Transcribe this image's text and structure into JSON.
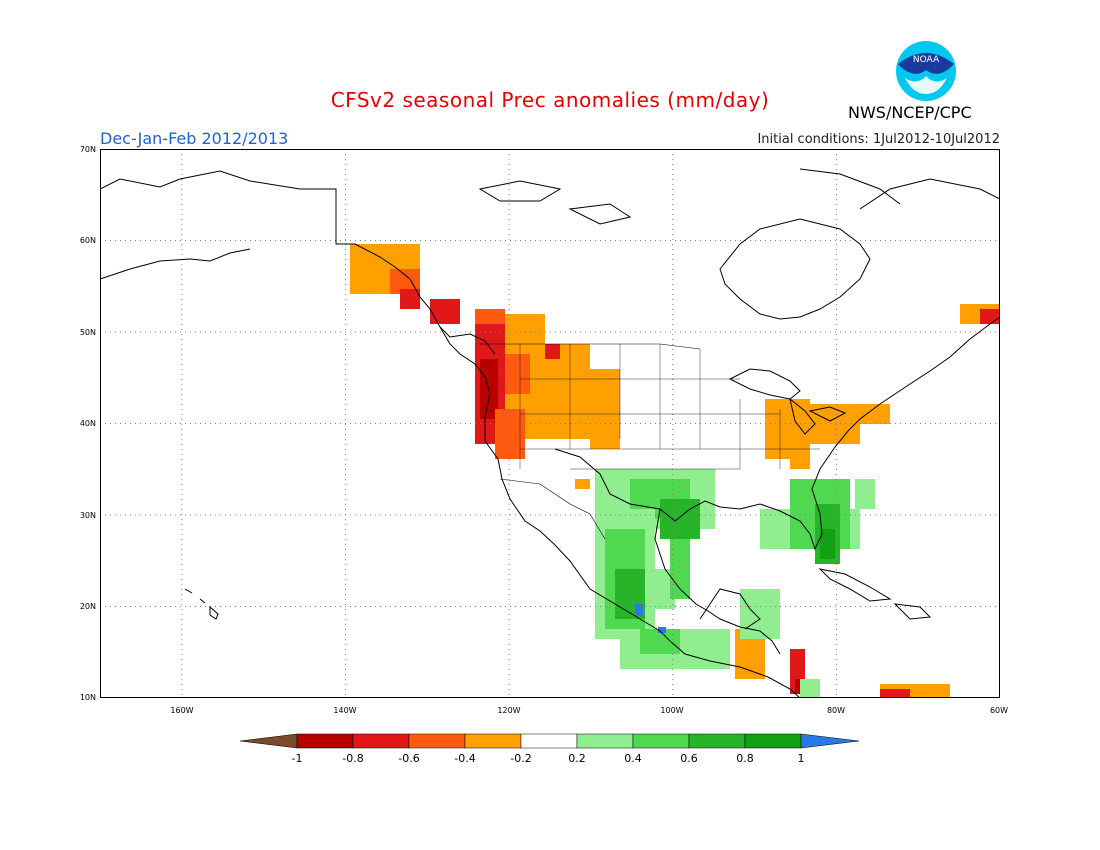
{
  "header": {
    "title": "CFSv2 seasonal Prec anomalies (mm/day)",
    "season": "Dec-Jan-Feb 2012/2013",
    "initial_conditions": "Initial conditions: 1Jul2012-10Jul2012",
    "agency": "NWS/NCEP/CPC",
    "logo_text": "NOAA"
  },
  "map": {
    "lat_labels": [
      "70N",
      "60N",
      "50N",
      "40N",
      "30N",
      "20N",
      "10N"
    ],
    "lon_labels": [
      "160W",
      "140W",
      "120W",
      "100W",
      "80W",
      "60W"
    ],
    "lat_range": [
      10,
      70
    ],
    "lon_range": [
      -170,
      -60
    ]
  },
  "colorbar": {
    "labels": [
      "-1",
      "-0.8",
      "-0.6",
      "-0.4",
      "-0.2",
      "0.2",
      "0.4",
      "0.6",
      "0.8",
      "1"
    ],
    "colors": [
      "#7a4a2a",
      "#b80000",
      "#e01818",
      "#ff5a10",
      "#ffa000",
      "#ffffff",
      "#90ee90",
      "#50d850",
      "#28b428",
      "#14a014",
      "#2a78e6"
    ]
  }
}
